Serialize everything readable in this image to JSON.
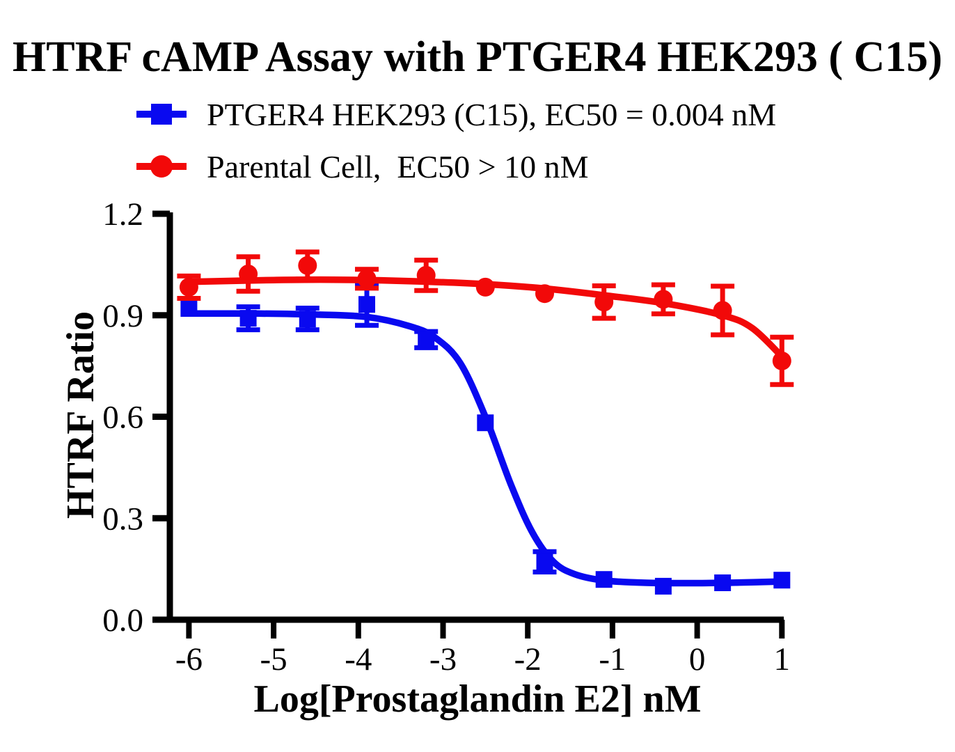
{
  "chart_data": {
    "type": "line",
    "title": "HTRF cAMP Assay with PTGER4 HEK293 ( C15)",
    "xlabel": "Log[Prostaglandin E2] nM",
    "ylabel": "HTRF Ratio",
    "grid": false,
    "legend_position": "top-left",
    "axis_color": "#000000",
    "x_axis": {
      "min": -6.23,
      "max": 1.03,
      "tick_values": [
        -6,
        -5,
        -4,
        -3,
        -2,
        -1,
        0,
        1
      ],
      "tick_labels": [
        "-6",
        "-5",
        "-4",
        "-3",
        "-2",
        "-1",
        "0",
        "1"
      ]
    },
    "y_axis": {
      "min": 0.0,
      "max": 1.2,
      "tick_values": [
        0.0,
        0.3,
        0.6,
        0.9,
        1.2
      ],
      "tick_labels": [
        "0.0",
        "0.3",
        "0.6",
        "0.9",
        "1.2"
      ]
    },
    "x": [
      -6,
      -5.3,
      -4.6,
      -3.9,
      -3.2,
      -2.5,
      -1.8,
      -1.1,
      -0.4,
      0.3,
      1
    ],
    "series": [
      {
        "name": "PTGER4 HEK293 (C15)",
        "ec50": "EC50 = 0.004 nM",
        "color": "#0909F0",
        "marker": "square",
        "values": [
          0.92,
          0.891,
          0.889,
          0.932,
          0.828,
          0.582,
          0.171,
          0.119,
          0.099,
          0.109,
          0.117
        ],
        "errors": [
          null,
          0.034,
          0.032,
          0.062,
          0.024,
          null,
          0.03,
          null,
          null,
          null,
          null
        ],
        "fit": {
          "x": [
            -6,
            -5.2,
            -4.5,
            -3.9,
            -3.4,
            -3.1,
            -2.8,
            -2.5,
            -2.2,
            -1.95,
            -1.7,
            -1.45,
            -1.1,
            -0.6,
            0,
            0.5,
            1
          ],
          "y": [
            0.905,
            0.905,
            0.902,
            0.895,
            0.868,
            0.835,
            0.76,
            0.6,
            0.4,
            0.26,
            0.172,
            0.135,
            0.116,
            0.109,
            0.108,
            0.11,
            0.113
          ]
        }
      },
      {
        "name": "Parental Cell",
        "ec50": "EC50 > 10 nM",
        "color": "#F20909",
        "marker": "circle",
        "values": [
          0.983,
          1.022,
          1.047,
          1.008,
          1.018,
          0.983,
          0.964,
          0.939,
          0.947,
          0.914,
          0.765
        ],
        "errors": [
          0.033,
          0.051,
          0.04,
          0.028,
          0.045,
          null,
          null,
          0.048,
          0.043,
          0.072,
          0.07
        ],
        "fit": {
          "x": [
            -6,
            -5,
            -4.3,
            -3.4,
            -2.5,
            -1.8,
            -1.1,
            -0.4,
            0.3,
            0.65,
            1
          ],
          "y": [
            0.999,
            1.004,
            1.005,
            1.001,
            0.992,
            0.979,
            0.959,
            0.936,
            0.9,
            0.862,
            0.778
          ]
        }
      }
    ]
  },
  "legend": [
    {
      "label": "PTGER4 HEK293 (C15), EC50 = 0.004 nM",
      "color": "#0909F0",
      "marker": "square"
    },
    {
      "label": "Parental Cell,  EC50 > 10 nM",
      "color": "#F20909",
      "marker": "circle"
    }
  ]
}
